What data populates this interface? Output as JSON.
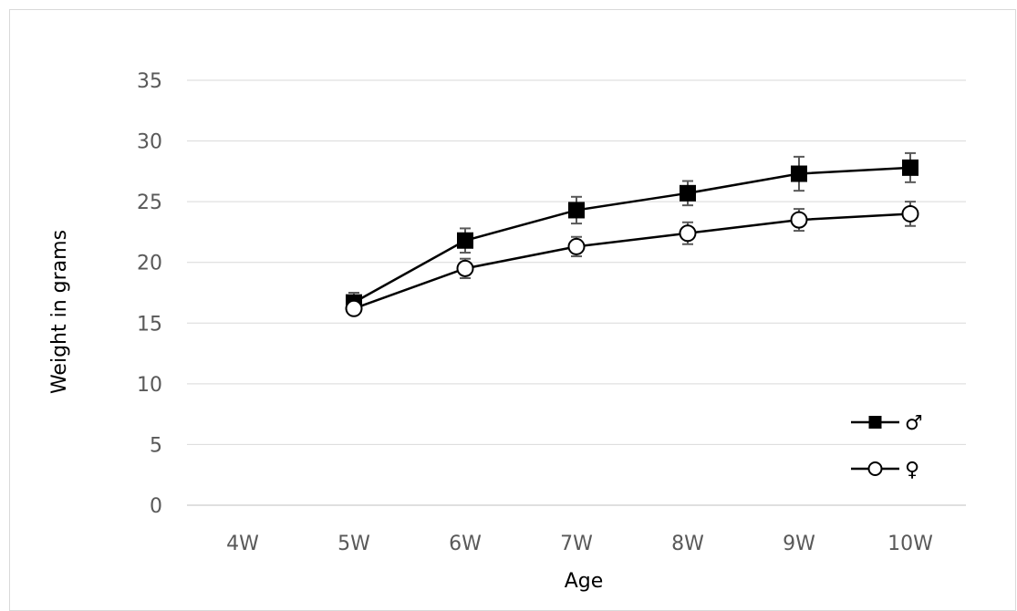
{
  "chart_data": {
    "type": "line",
    "title": "",
    "xlabel": "Age",
    "ylabel": "Weight in grams",
    "categories": [
      "4W",
      "5W",
      "6W",
      "7W",
      "8W",
      "9W",
      "10W"
    ],
    "ylim": [
      0,
      35
    ],
    "yticks": [
      "0",
      "5",
      "10",
      "15",
      "20",
      "25",
      "30",
      "35"
    ],
    "grid": "horizontal",
    "legend_position": "bottom-right",
    "series": [
      {
        "name": "♂",
        "marker": "filled-square",
        "color": "#000000",
        "values": [
          null,
          16.7,
          21.8,
          24.3,
          25.7,
          27.3,
          27.8
        ],
        "error": [
          null,
          0.8,
          1.0,
          1.1,
          1.0,
          1.4,
          1.2
        ]
      },
      {
        "name": "♀",
        "marker": "open-circle",
        "color": "#000000",
        "values": [
          null,
          16.2,
          19.5,
          21.3,
          22.4,
          23.5,
          24.0
        ],
        "error": [
          null,
          0.5,
          0.8,
          0.8,
          0.9,
          0.9,
          1.0
        ]
      }
    ]
  }
}
